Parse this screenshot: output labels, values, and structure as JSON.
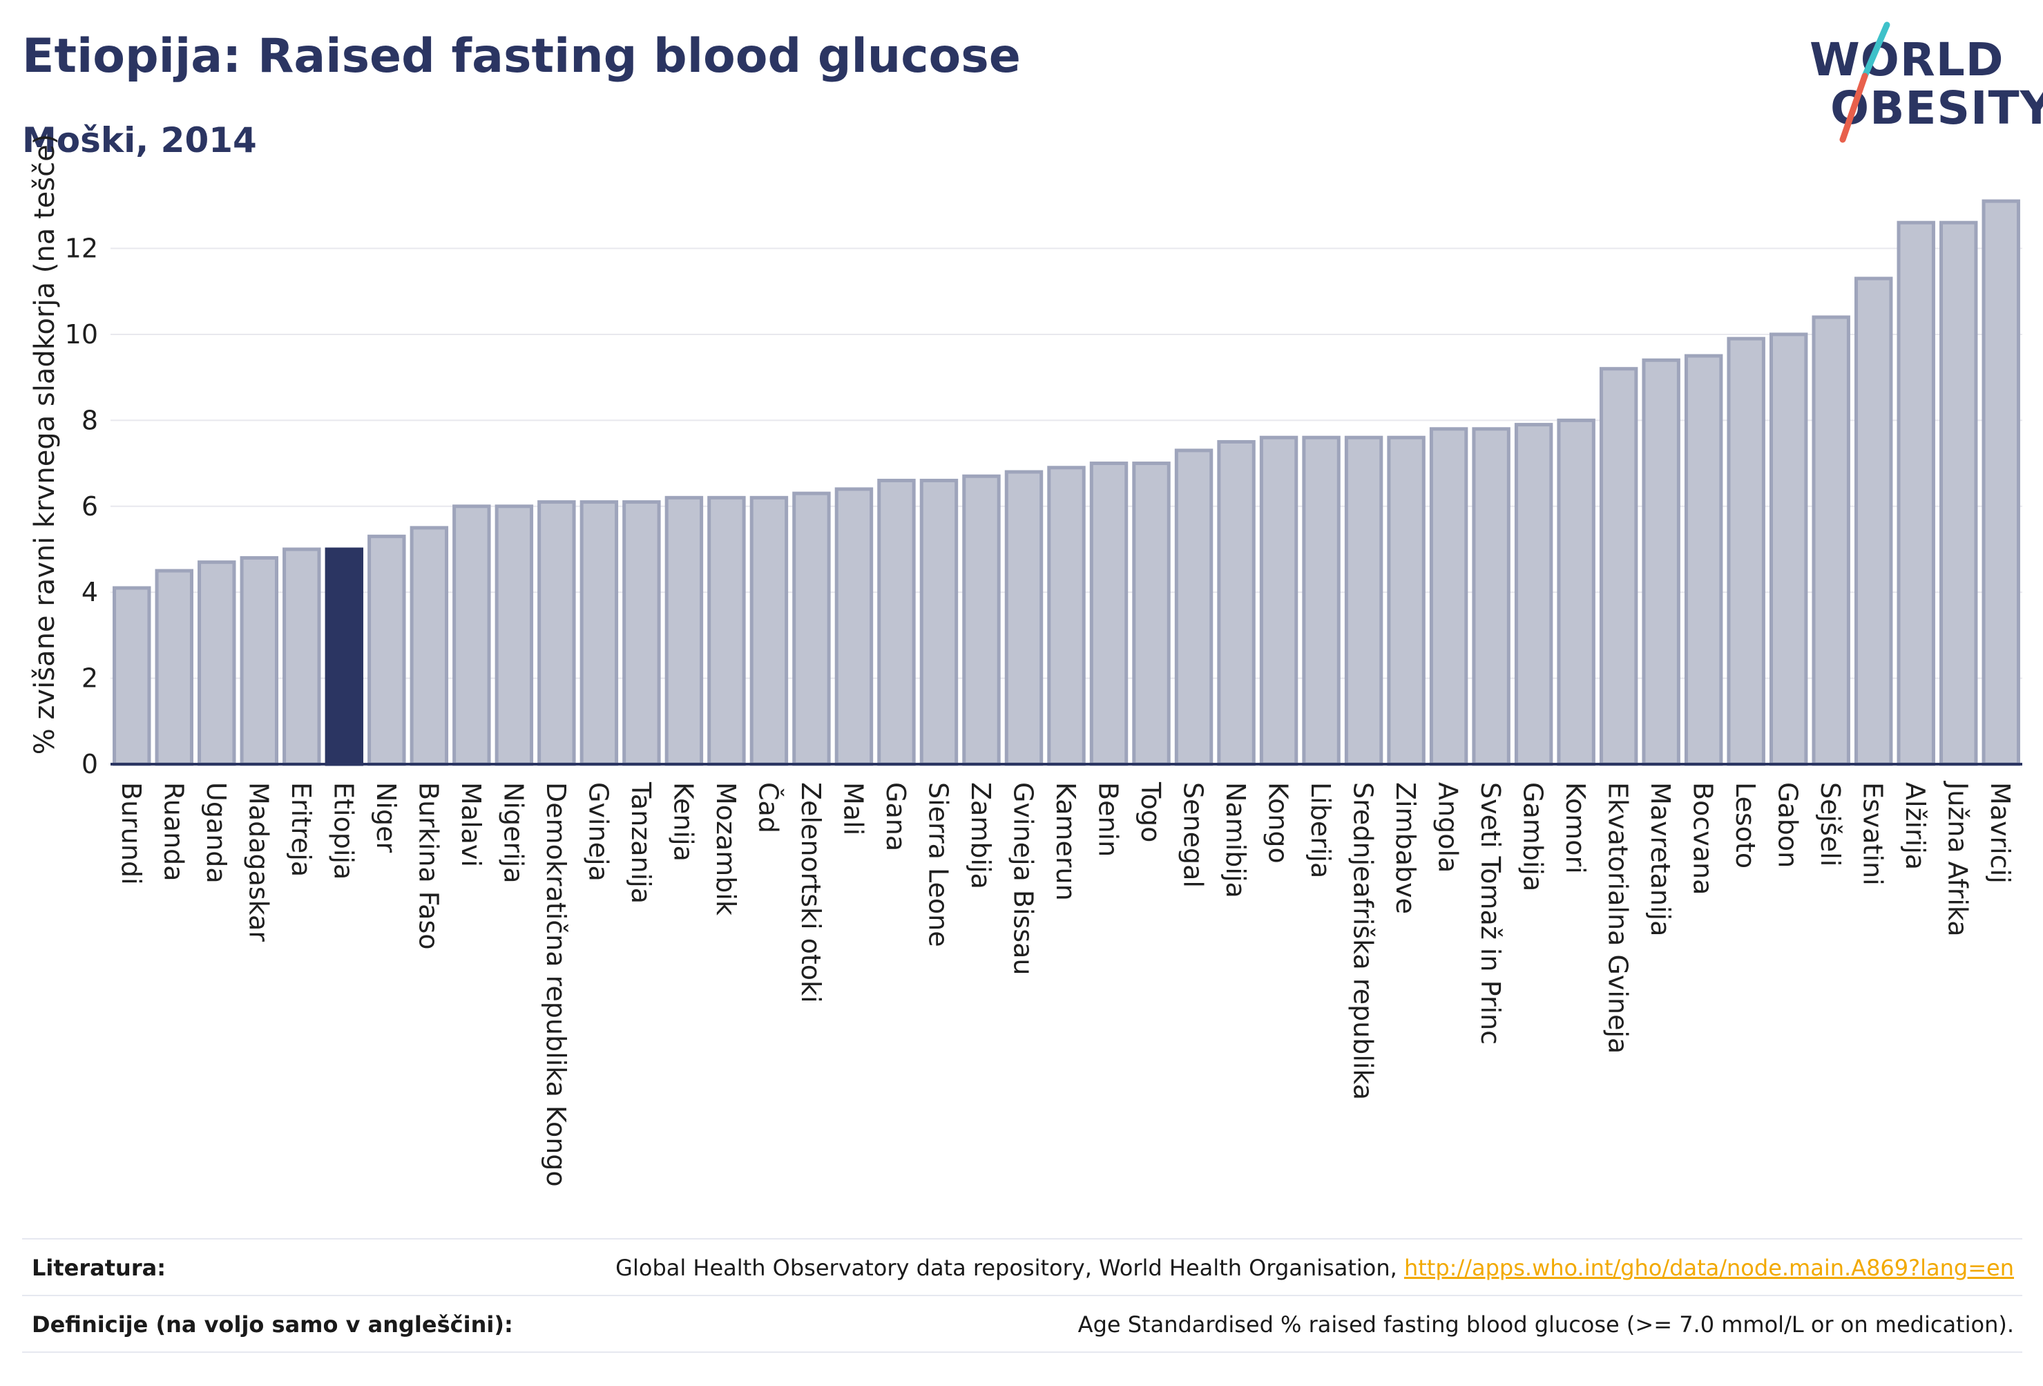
{
  "header": {
    "title": "Etiopija: Raised fasting blood glucose",
    "subtitle": "Moški, 2014"
  },
  "logo": {
    "line1": "WORLD",
    "line2": "OBESITY",
    "slash_colors": [
      "#3ec1c9",
      "#e8604c"
    ]
  },
  "colors": {
    "bar": "#bfc3d1",
    "bar_stroke": "#9ea4bb",
    "highlight": "#2b3562",
    "grid": "#e8e8ee",
    "axis": "#2b3562"
  },
  "chart_data": {
    "type": "bar",
    "ylabel": "% zvišane ravni krvnega sladkorja (na tešče)",
    "ylim": [
      0,
      13.6
    ],
    "yticks": [
      0,
      2,
      4,
      6,
      8,
      10,
      12
    ],
    "grid": true,
    "highlight": "Etiopija",
    "categories": [
      "Burundi",
      "Ruanda",
      "Uganda",
      "Madagaskar",
      "Eritreja",
      "Etiopija",
      "Niger",
      "Burkina Faso",
      "Malavi",
      "Nigerija",
      "Demokratična republika Kongo",
      "Gvineja",
      "Tanzanija",
      "Kenija",
      "Mozambik",
      "Čad",
      "Zelenortski otoki",
      "Mali",
      "Gana",
      "Sierra Leone",
      "Zambija",
      "Gvineja Bissau",
      "Kamerun",
      "Benin",
      "Togo",
      "Senegal",
      "Namibija",
      "Kongo",
      "Liberija",
      "Srednjeafriška republika",
      "Zimbabve",
      "Angola",
      "Sveti Tomaž in Princ",
      "Gambija",
      "Komori",
      "Ekvatorialna Gvineja",
      "Mavretanija",
      "Bocvana",
      "Lesoto",
      "Gabon",
      "Sejšeli",
      "Esvatini",
      "Alžirija",
      "Južna Afrika",
      "Mavricij"
    ],
    "values": [
      4.1,
      4.5,
      4.7,
      4.8,
      5.0,
      5.0,
      5.3,
      5.5,
      6.0,
      6.0,
      6.1,
      6.1,
      6.1,
      6.2,
      6.2,
      6.2,
      6.3,
      6.4,
      6.6,
      6.6,
      6.7,
      6.8,
      6.9,
      7.0,
      7.0,
      7.3,
      7.5,
      7.6,
      7.6,
      7.6,
      7.6,
      7.8,
      7.8,
      7.9,
      8.0,
      9.2,
      9.4,
      9.5,
      9.9,
      10.0,
      10.4,
      11.3,
      12.6,
      12.6,
      13.1
    ]
  },
  "footer": {
    "literature_label": "Literatura:",
    "literature_text": "Global Health Observatory data repository, World Health Organisation, ",
    "literature_link": "http://apps.who.int/gho/data/node.main.A869?lang=en",
    "definitions_label": "Definicije (na voljo samo v angleščini):",
    "definitions_text": "Age Standardised % raised fasting blood glucose (>= 7.0 mmol/L or on medication)."
  }
}
